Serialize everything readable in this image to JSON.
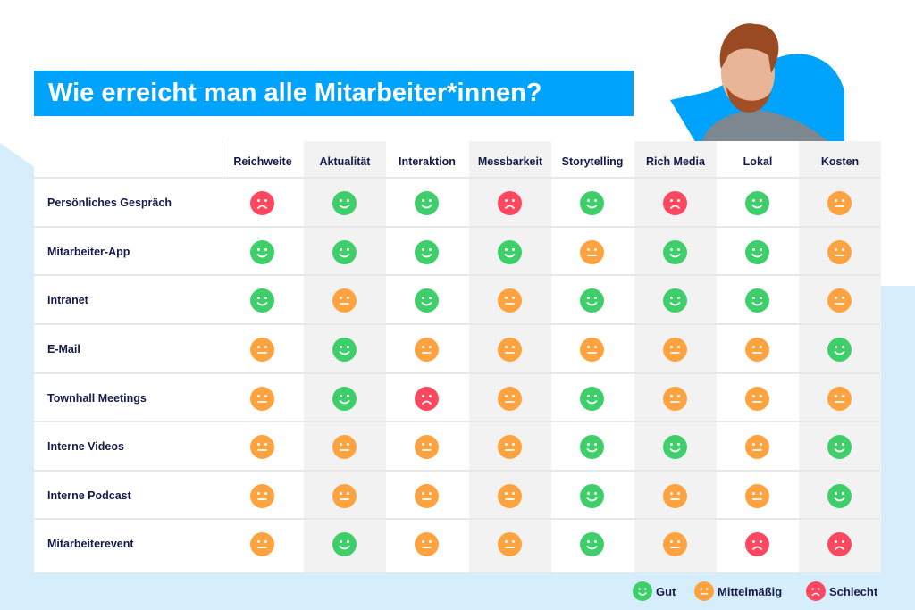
{
  "title": "Wie erreicht man alle Mitarbeiter*innen?",
  "colors": {
    "gut": "#3ecf6b",
    "mittel": "#ffa340",
    "schlecht": "#ff4760",
    "title_bg": "#00a3fb",
    "text": "#141a4a"
  },
  "columns": [
    "Reichweite",
    "Aktualität",
    "Interaktion",
    "Messbarkeit",
    "Storytelling",
    "Rich Media",
    "Lokal",
    "Kosten"
  ],
  "rows": [
    {
      "label": "Persönliches Gespräch",
      "ratings": [
        "schlecht",
        "gut",
        "gut",
        "schlecht",
        "gut",
        "schlecht",
        "gut",
        "mittel"
      ]
    },
    {
      "label": "Mitarbeiter-App",
      "ratings": [
        "gut",
        "gut",
        "gut",
        "gut",
        "mittel",
        "gut",
        "gut",
        "mittel"
      ]
    },
    {
      "label": "Intranet",
      "ratings": [
        "gut",
        "mittel",
        "gut",
        "mittel",
        "gut",
        "gut",
        "gut",
        "mittel"
      ]
    },
    {
      "label": "E-Mail",
      "ratings": [
        "mittel",
        "gut",
        "mittel",
        "mittel",
        "mittel",
        "mittel",
        "mittel",
        "gut"
      ]
    },
    {
      "label": "Townhall Meetings",
      "ratings": [
        "mittel",
        "gut",
        "schlecht",
        "mittel",
        "gut",
        "mittel",
        "mittel",
        "mittel"
      ]
    },
    {
      "label": "Interne Videos",
      "ratings": [
        "mittel",
        "mittel",
        "mittel",
        "mittel",
        "gut",
        "gut",
        "mittel",
        "gut"
      ]
    },
    {
      "label": "Interne Podcast",
      "ratings": [
        "mittel",
        "mittel",
        "mittel",
        "mittel",
        "gut",
        "mittel",
        "mittel",
        "gut"
      ]
    },
    {
      "label": "Mitarbeiterevent",
      "ratings": [
        "mittel",
        "gut",
        "mittel",
        "mittel",
        "gut",
        "mittel",
        "schlecht",
        "schlecht"
      ]
    }
  ],
  "legend": [
    {
      "key": "gut",
      "label": "Gut"
    },
    {
      "key": "mittel",
      "label": "Mittelmäßig"
    },
    {
      "key": "schlecht",
      "label": "Schlecht"
    }
  ]
}
